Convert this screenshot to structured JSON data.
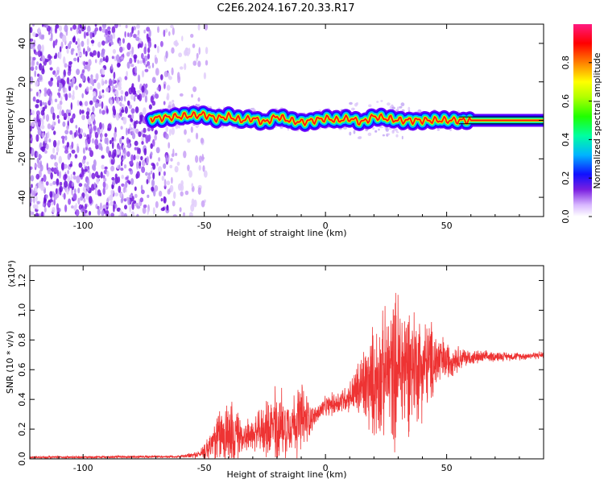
{
  "title": "C2E6.2024.167.20.33.R17",
  "colors": {
    "snr_line": "#ee3333",
    "ridge_red": "#ff2020",
    "noise_purple": "#7a1fe0",
    "colorbar_stops": [
      "#6a00ff",
      "#0000ff",
      "#00b0ff",
      "#00ff80",
      "#40ff00",
      "#ffff00",
      "#ff8000",
      "#ff0000",
      "#ff0080"
    ]
  },
  "chart_data": [
    {
      "type": "heatmap",
      "title": "C2E6.2024.167.20.33.R17",
      "xlabel": "Height of straight line (km)",
      "ylabel": "Frequency (Hz)",
      "xlim": [
        -122,
        90
      ],
      "ylim": [
        -50,
        50
      ],
      "x_ticks": [
        -100,
        -50,
        0,
        50
      ],
      "y_ticks": [
        40,
        20,
        0,
        -20,
        -40
      ],
      "colorbar": {
        "label": "Normalized spectral amplitude",
        "range": [
          0.0,
          1.0
        ],
        "ticks": [
          "0.0",
          "0.2",
          "0.4",
          "0.6",
          "0.8"
        ]
      },
      "features": {
        "broadband_noise_x_range": [
          -122,
          -55
        ],
        "ridge_x_range": [
          -72,
          90
        ],
        "ridge_frequency_hz": [
          [
            -72,
            1
          ],
          [
            -60,
            2
          ],
          [
            -50,
            3
          ],
          [
            -45,
            1
          ],
          [
            -40,
            2
          ],
          [
            -35,
            0
          ],
          [
            -30,
            1
          ],
          [
            -25,
            -1
          ],
          [
            -20,
            2
          ],
          [
            -15,
            0
          ],
          [
            -10,
            -1
          ],
          [
            -5,
            0
          ],
          [
            0,
            1
          ],
          [
            5,
            0
          ],
          [
            10,
            1
          ],
          [
            15,
            -1
          ],
          [
            20,
            2
          ],
          [
            25,
            1
          ],
          [
            30,
            0
          ],
          [
            40,
            0
          ],
          [
            50,
            0
          ],
          [
            60,
            0
          ],
          [
            70,
            0
          ],
          [
            80,
            0
          ],
          [
            90,
            0
          ]
        ]
      }
    },
    {
      "type": "line",
      "xlabel": "Height of straight line (km)",
      "ylabel": "SNR (10 * v/v)",
      "y_multiplier": "(x10⁴)",
      "xlim": [
        -122,
        90
      ],
      "ylim": [
        0.0,
        1.3
      ],
      "x_ticks": [
        -100,
        -50,
        0,
        50
      ],
      "y_ticks": [
        "0.0",
        "0.2",
        "0.4",
        "0.6",
        "0.8",
        "1.0",
        "1.2"
      ],
      "series": [
        {
          "envelope": {
            "x": [
              -122,
              -60,
              -52,
              -48,
              -45,
              -40,
              -35,
              -30,
              -25,
              -20,
              -15,
              -10,
              -5,
              0,
              5,
              10,
              15,
              20,
              25,
              30,
              35,
              40,
              45,
              50,
              55,
              60,
              70,
              80,
              90
            ],
            "center": [
              0.01,
              0.015,
              0.03,
              0.08,
              0.15,
              0.18,
              0.15,
              0.16,
              0.2,
              0.22,
              0.24,
              0.26,
              0.28,
              0.35,
              0.38,
              0.42,
              0.48,
              0.52,
              0.58,
              0.62,
              0.64,
              0.62,
              0.66,
              0.66,
              0.68,
              0.68,
              0.69,
              0.69,
              0.7
            ],
            "amplitude": [
              0.01,
              0.01,
              0.03,
              0.12,
              0.2,
              0.3,
              0.15,
              0.12,
              0.2,
              0.35,
              0.2,
              0.32,
              0.08,
              0.08,
              0.1,
              0.12,
              0.3,
              0.45,
              0.5,
              0.65,
              0.5,
              0.4,
              0.3,
              0.15,
              0.1,
              0.06,
              0.04,
              0.03,
              0.03
            ]
          }
        }
      ]
    }
  ]
}
